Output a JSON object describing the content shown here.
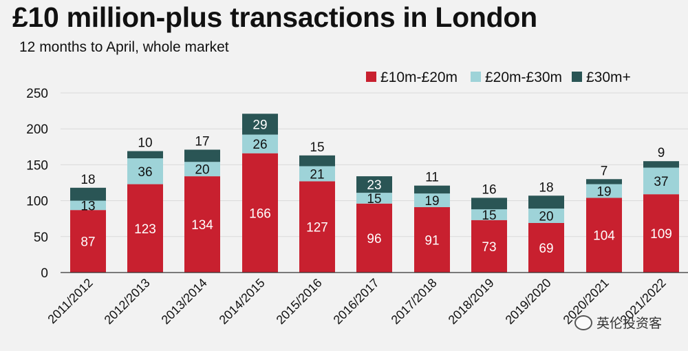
{
  "header": {
    "title": "£10 million-plus transactions in London",
    "subtitle": "12 months to April, whole market"
  },
  "watermark": {
    "text": "英伦投资客",
    "icon": "wechat-icon"
  },
  "colors": {
    "s10_20": "#c8202f",
    "s20_30": "#9ed3d8",
    "s30plus": "#2a5555",
    "grid": "#d9d9d9",
    "axis": "#333333"
  },
  "chart_data": {
    "type": "bar",
    "stacked": true,
    "title": "£10 million-plus transactions in London",
    "subtitle": "12 months to April, whole market",
    "categories": [
      "2011/2012",
      "2012/2013",
      "2013/2014",
      "2014/2015",
      "2015/2016",
      "2016/2017",
      "2017/2018",
      "2018/2019",
      "2019/2020",
      "2020/2021",
      "2021/2022"
    ],
    "series": [
      {
        "name": "£10m-£20m",
        "values": [
          87,
          123,
          134,
          166,
          127,
          96,
          91,
          73,
          69,
          104,
          109
        ]
      },
      {
        "name": "£20m-£30m",
        "values": [
          13,
          36,
          20,
          26,
          21,
          15,
          19,
          15,
          20,
          19,
          37
        ]
      },
      {
        "name": "£30m+",
        "values": [
          18,
          10,
          17,
          29,
          15,
          23,
          11,
          16,
          18,
          7,
          9
        ]
      }
    ],
    "yticks": [
      0,
      50,
      100,
      150,
      200,
      250
    ],
    "ylim": [
      0,
      250
    ],
    "xlabel": "",
    "ylabel": "",
    "grid": true,
    "legend_position": "top-right"
  }
}
